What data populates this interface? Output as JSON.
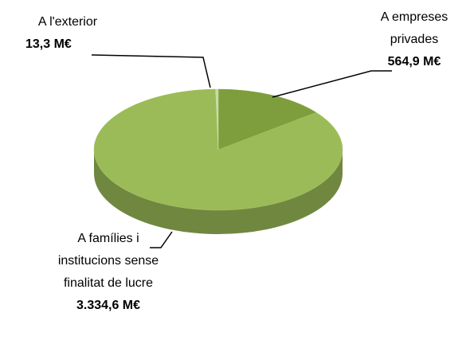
{
  "chart_data": {
    "type": "pie",
    "categories": [
      "A empreses privades",
      "A famílies i institucions sense finalitat de lucre",
      "A l'exterior"
    ],
    "values": [
      564.9,
      3334.6,
      13.3
    ],
    "value_labels": [
      "564,9 M€",
      "3.334,6 M€",
      "13,3 M€"
    ],
    "colors": [
      "#7e9e3e",
      "#9bbb59",
      "#c8d9a6"
    ]
  }
}
